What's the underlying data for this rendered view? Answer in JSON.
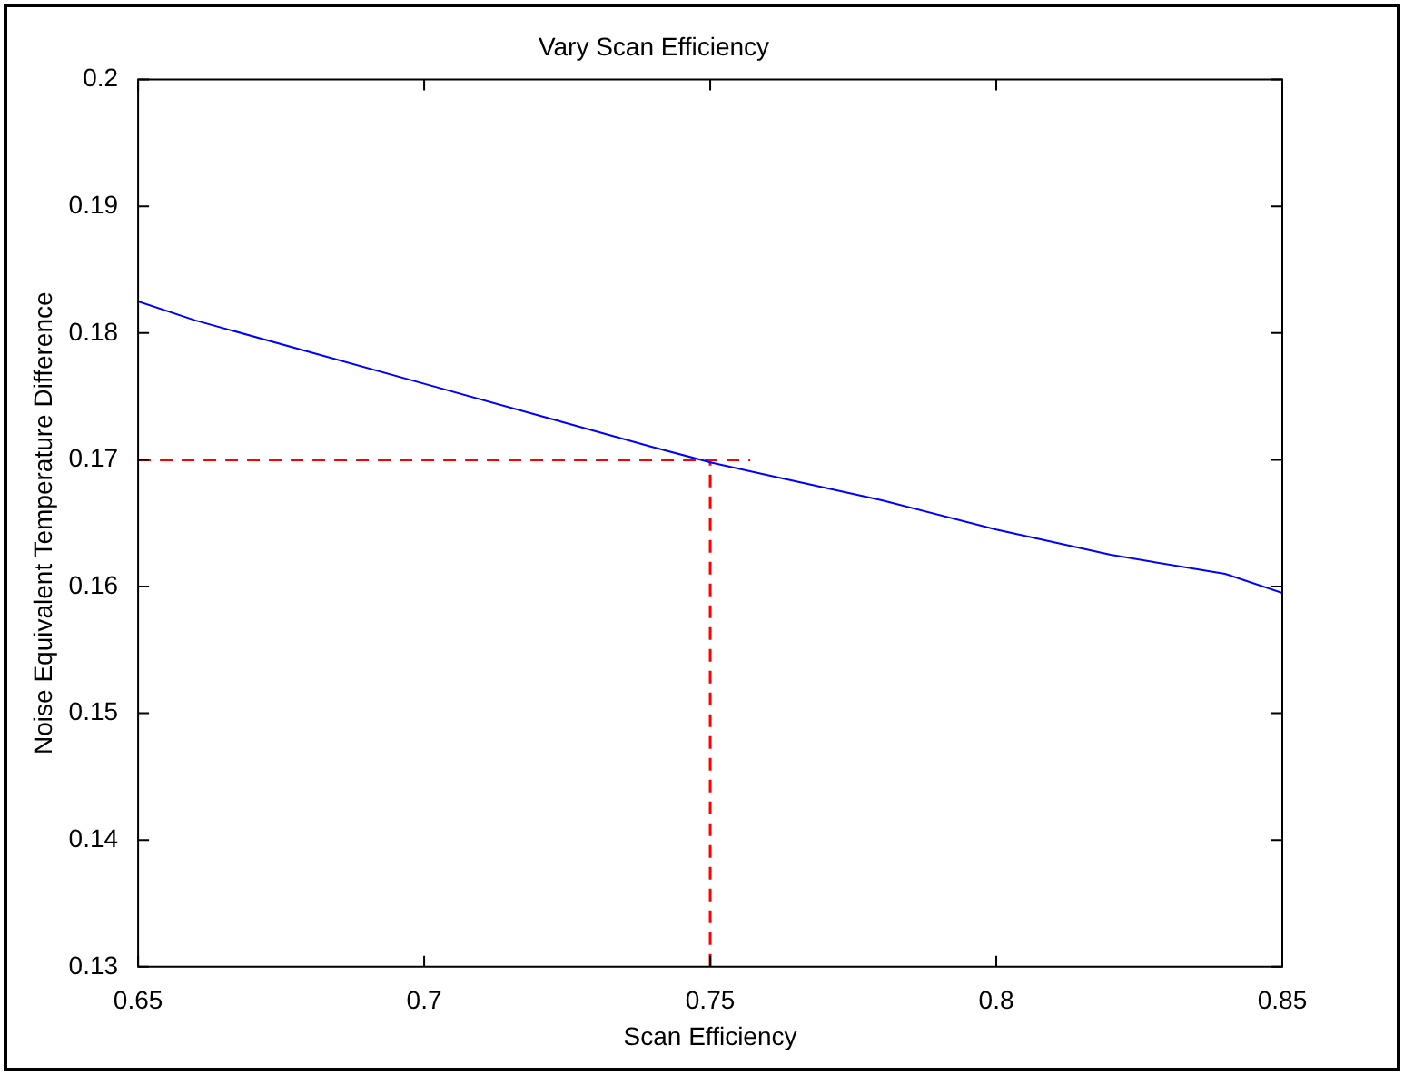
{
  "chart_data": {
    "type": "line",
    "title": "Vary Scan Efficiency",
    "xlabel": "Scan Efficiency",
    "ylabel": "Noise Equivalent Temperature Difference",
    "xlim": [
      0.65,
      0.85
    ],
    "xticks": [
      0.65,
      0.7,
      0.75,
      0.8,
      0.85
    ],
    "ylim": [
      0.13,
      0.2
    ],
    "yticks": [
      0.13,
      0.14,
      0.15,
      0.16,
      0.17,
      0.18,
      0.19,
      0.2
    ],
    "marker": "none",
    "series": [
      {
        "color": "#0000ff",
        "line_style": "solid",
        "x": [
          0.65,
          0.66,
          0.68,
          0.7,
          0.72,
          0.74,
          0.75,
          0.76,
          0.78,
          0.8,
          0.82,
          0.84,
          0.85
        ],
        "values": [
          0.1825,
          0.181,
          0.1785,
          0.176,
          0.1735,
          0.171,
          0.1698,
          0.1688,
          0.1668,
          0.1645,
          0.1625,
          0.161,
          0.1595
        ]
      },
      {
        "color": "#ff0000",
        "line_style": "dashed",
        "x": [
          0.65,
          0.757
        ],
        "values": [
          0.17,
          0.17
        ]
      },
      {
        "color": "#ff0000",
        "line_style": "dashed",
        "x": [
          0.75,
          0.75
        ],
        "values": [
          0.13,
          0.17
        ]
      }
    ]
  }
}
